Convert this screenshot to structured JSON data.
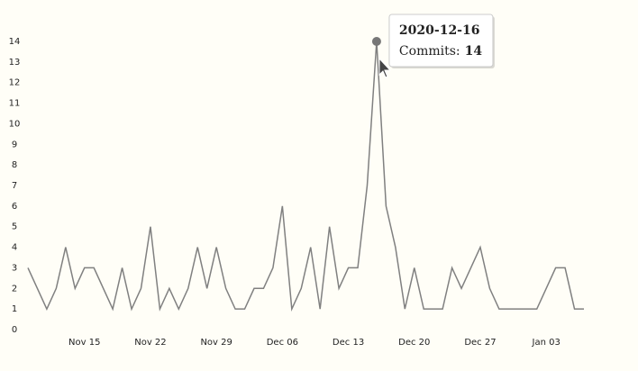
{
  "chart_data": {
    "type": "line",
    "x": [
      "2020-11-09",
      "2020-11-10",
      "2020-11-11",
      "2020-11-12",
      "2020-11-13",
      "2020-11-14",
      "2020-11-15",
      "2020-11-16",
      "2020-11-17",
      "2020-11-18",
      "2020-11-19",
      "2020-11-20",
      "2020-11-21",
      "2020-11-22",
      "2020-11-23",
      "2020-11-24",
      "2020-11-25",
      "2020-11-26",
      "2020-11-27",
      "2020-11-28",
      "2020-11-29",
      "2020-11-30",
      "2020-12-01",
      "2020-12-02",
      "2020-12-03",
      "2020-12-04",
      "2020-12-05",
      "2020-12-06",
      "2020-12-07",
      "2020-12-08",
      "2020-12-09",
      "2020-12-10",
      "2020-12-11",
      "2020-12-12",
      "2020-12-13",
      "2020-12-14",
      "2020-12-15",
      "2020-12-16",
      "2020-12-17",
      "2020-12-18",
      "2020-12-19",
      "2020-12-20",
      "2020-12-21",
      "2020-12-22",
      "2020-12-23",
      "2020-12-24",
      "2020-12-25",
      "2020-12-26",
      "2020-12-27",
      "2020-12-28",
      "2020-12-29",
      "2020-12-30",
      "2020-12-31",
      "2021-01-01",
      "2021-01-02",
      "2021-01-03",
      "2021-01-04",
      "2021-01-05",
      "2021-01-06",
      "2021-01-07"
    ],
    "series": [
      {
        "color": "#808080",
        "values": [
          3,
          2,
          1,
          2,
          4,
          2,
          3,
          3,
          2,
          1,
          3,
          1,
          2,
          5,
          1,
          2,
          1,
          2,
          4,
          2,
          4,
          2,
          1,
          1,
          2,
          2,
          3,
          6,
          1,
          2,
          4,
          1,
          5,
          2,
          3,
          3,
          7,
          14,
          6,
          4,
          1,
          3,
          1,
          1,
          1,
          3,
          2,
          3,
          4,
          2,
          1,
          1,
          1,
          1,
          1,
          2,
          3,
          3,
          1,
          1
        ]
      }
    ],
    "xlim": [
      "2020-11-09",
      "2021-01-07"
    ],
    "xticks": [
      {
        "value": "2020-11-15",
        "label": "Nov 15"
      },
      {
        "value": "2020-11-22",
        "label": "Nov 22"
      },
      {
        "value": "2020-11-29",
        "label": "Nov 29"
      },
      {
        "value": "2020-12-06",
        "label": "Dec 06"
      },
      {
        "value": "2020-12-13",
        "label": "Dec 13"
      },
      {
        "value": "2020-12-20",
        "label": "Dec 20"
      },
      {
        "value": "2020-12-27",
        "label": "Dec 27"
      },
      {
        "value": "2021-01-03",
        "label": "Jan 03"
      }
    ],
    "ylim": [
      0,
      14
    ],
    "yticks": [
      0,
      1,
      2,
      3,
      4,
      5,
      6,
      7,
      8,
      9,
      10,
      11,
      12,
      13,
      14
    ],
    "tooltip": {
      "index": 37,
      "label": "Commits:"
    }
  }
}
